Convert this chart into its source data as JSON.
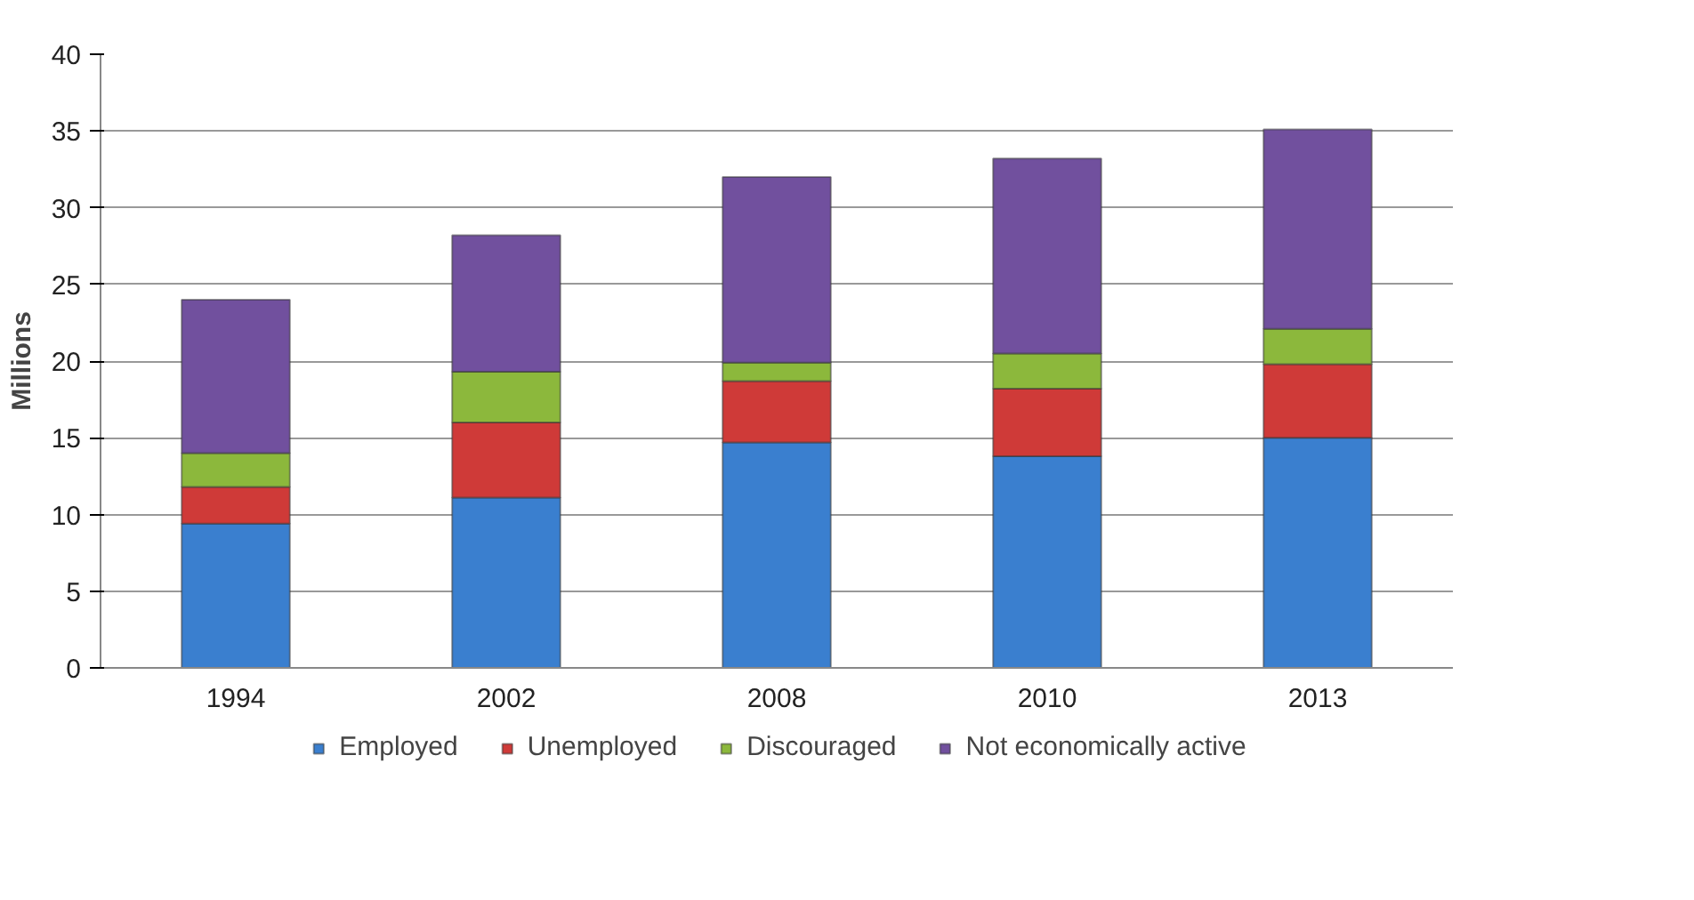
{
  "chart_data": {
    "type": "bar",
    "stacked": true,
    "ylabel": "Millions",
    "categories": [
      "1994",
      "2002",
      "2008",
      "2010",
      "2013"
    ],
    "series": [
      {
        "name": "Employed",
        "color": "#3a7fcf",
        "values": [
          9.4,
          11.1,
          14.7,
          13.8,
          15.0
        ]
      },
      {
        "name": "Unemployed",
        "color": "#cf3a38",
        "values": [
          2.4,
          4.9,
          4.0,
          4.4,
          4.8
        ]
      },
      {
        "name": "Discouraged",
        "color": "#8cb83c",
        "values": [
          2.2,
          3.3,
          1.2,
          2.3,
          2.3
        ]
      },
      {
        "name": "Not economically active",
        "color": "#71509e",
        "values": [
          10.0,
          8.9,
          12.1,
          12.7,
          13.0
        ]
      }
    ],
    "ylim": [
      0,
      40
    ],
    "yticks": [
      0,
      5,
      10,
      15,
      20,
      25,
      30,
      35,
      40
    ],
    "grid": "y",
    "legend": "bottom"
  }
}
